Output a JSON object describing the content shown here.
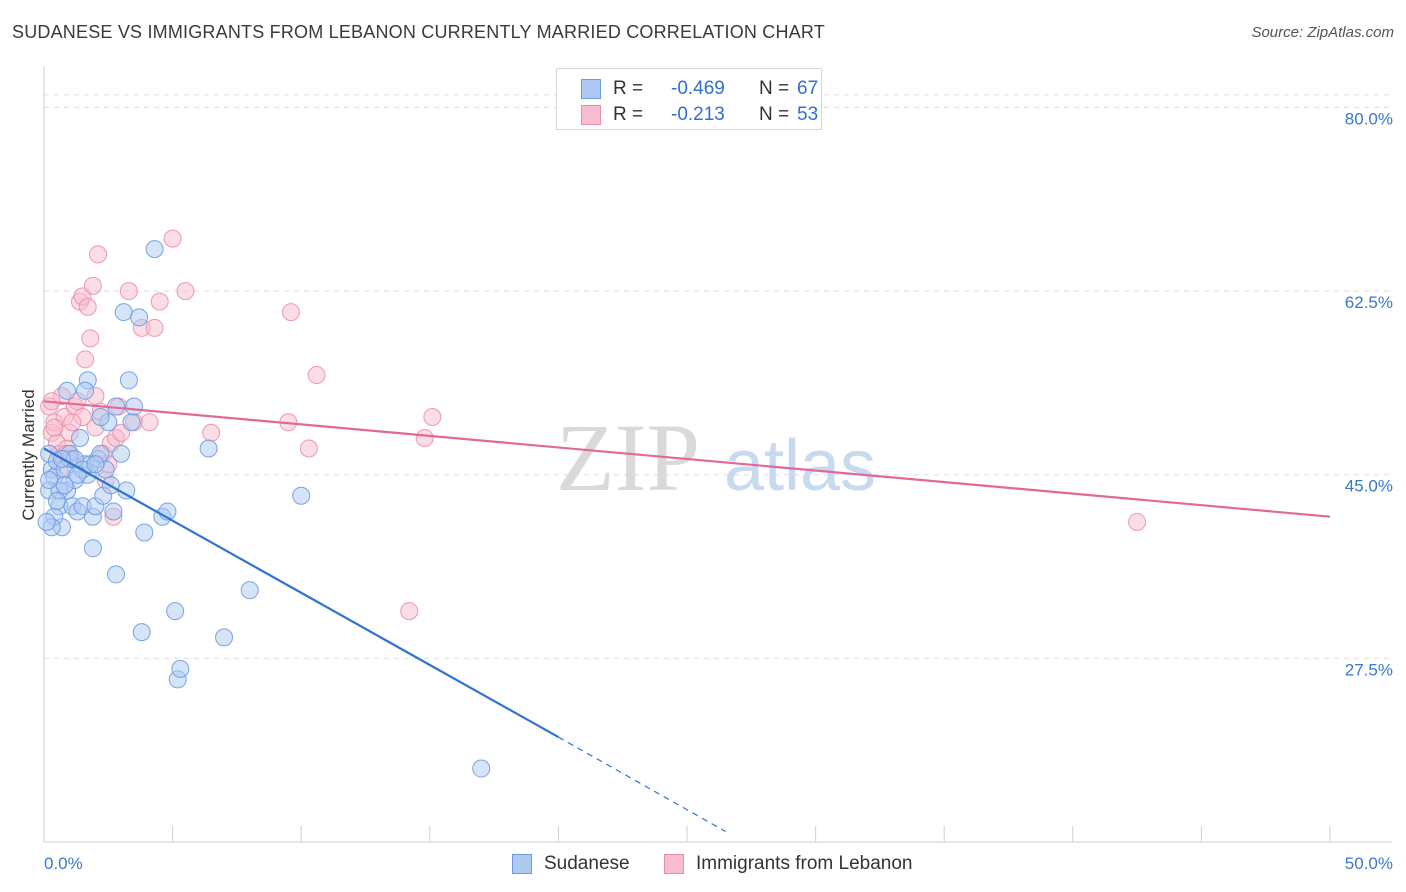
{
  "title": "SUDANESE VS IMMIGRANTS FROM LEBANON CURRENTLY MARRIED CORRELATION CHART",
  "source": "Source: ZipAtlas.com",
  "watermark": {
    "zip": "ZIP",
    "atlas": "atlas"
  },
  "legend_top": [
    {
      "r_label": "R =",
      "r_value": "-0.469",
      "n_label": "N =",
      "n_value": "67"
    },
    {
      "r_label": "R =",
      "r_value": "-0.213",
      "n_label": "N =",
      "n_value": "53"
    }
  ],
  "legend_bottom": [
    {
      "label": "Sudanese"
    },
    {
      "label": "Immigrants from Lebanon"
    }
  ],
  "colors": {
    "blue_fill": "#aec9f2",
    "blue_stroke": "#6c9be0",
    "blue_line": "#2f74d0",
    "pink_fill": "#f7bccd",
    "pink_stroke": "#ea8fab",
    "pink_line": "#e2689a",
    "tick_text": "#3a78cc",
    "grid": "#dddddd"
  },
  "chart_data": {
    "type": "scatter",
    "title": "SUDANESE VS IMMIGRANTS FROM LEBANON CURRENTLY MARRIED CORRELATION CHART",
    "xlabel": "",
    "ylabel": "Currently Married",
    "xlim": [
      0,
      50
    ],
    "ylim": [
      10,
      83
    ],
    "x_tick_labels": [
      "0.0%",
      "50.0%"
    ],
    "y_ticks": [
      27.5,
      45.0,
      62.5,
      80.0
    ],
    "y_tick_labels": [
      "27.5%",
      "45.0%",
      "62.5%",
      "80.0%"
    ],
    "series": [
      {
        "name": "Sudanese",
        "r": -0.469,
        "n": 67,
        "trend": {
          "x0": 0,
          "y0": 47.5,
          "x1": 20,
          "y1": 20.0,
          "dash_x1": 26.5,
          "dash_y1": 11.0
        },
        "points": [
          [
            0.2,
            47.0
          ],
          [
            0.3,
            45.5
          ],
          [
            0.4,
            44.8
          ],
          [
            0.2,
            43.5
          ],
          [
            0.5,
            46.3
          ],
          [
            0.6,
            42.0
          ],
          [
            0.7,
            40.0
          ],
          [
            0.4,
            41.0
          ],
          [
            0.8,
            45.5
          ],
          [
            0.9,
            43.5
          ],
          [
            1.0,
            46.5
          ],
          [
            1.1,
            42.0
          ],
          [
            1.2,
            44.5
          ],
          [
            1.3,
            41.5
          ],
          [
            1.4,
            48.5
          ],
          [
            1.5,
            42.0
          ],
          [
            1.6,
            46.0
          ],
          [
            1.7,
            45.0
          ],
          [
            1.8,
            46.0
          ],
          [
            1.9,
            41.0
          ],
          [
            2.0,
            42.0
          ],
          [
            2.1,
            46.5
          ],
          [
            2.2,
            47.0
          ],
          [
            2.3,
            43.0
          ],
          [
            2.4,
            45.5
          ],
          [
            2.5,
            50.0
          ],
          [
            2.6,
            44.0
          ],
          [
            2.7,
            41.5
          ],
          [
            2.8,
            51.5
          ],
          [
            3.0,
            47.0
          ],
          [
            3.2,
            43.5
          ],
          [
            3.4,
            50.0
          ],
          [
            0.9,
            53.0
          ],
          [
            1.7,
            54.0
          ],
          [
            1.9,
            38.0
          ],
          [
            2.8,
            35.5
          ],
          [
            3.1,
            60.5
          ],
          [
            3.3,
            54.0
          ],
          [
            3.5,
            51.5
          ],
          [
            3.7,
            60.0
          ],
          [
            3.8,
            30.0
          ],
          [
            3.9,
            39.5
          ],
          [
            4.3,
            66.5
          ],
          [
            4.6,
            41.0
          ],
          [
            4.8,
            41.5
          ],
          [
            5.1,
            32.0
          ],
          [
            5.2,
            25.5
          ],
          [
            5.3,
            26.5
          ],
          [
            6.4,
            47.5
          ],
          [
            7.0,
            29.5
          ],
          [
            8.0,
            34.0
          ],
          [
            10.0,
            43.0
          ],
          [
            17.0,
            17.0
          ],
          [
            0.3,
            40.0
          ],
          [
            0.6,
            43.5
          ],
          [
            1.0,
            47.0
          ],
          [
            1.2,
            46.5
          ],
          [
            1.5,
            45.5
          ],
          [
            0.8,
            44.0
          ],
          [
            2.0,
            46.0
          ],
          [
            0.5,
            42.5
          ],
          [
            1.3,
            45.0
          ],
          [
            0.1,
            40.5
          ],
          [
            0.2,
            44.5
          ],
          [
            2.2,
            50.5
          ],
          [
            1.6,
            53.0
          ],
          [
            0.7,
            46.5
          ]
        ]
      },
      {
        "name": "Immigrants from Lebanon",
        "r": -0.213,
        "n": 53,
        "trend": {
          "x0": 0,
          "y0": 52.0,
          "x1": 50,
          "y1": 41.0
        },
        "points": [
          [
            0.2,
            51.5
          ],
          [
            0.3,
            49.0
          ],
          [
            0.4,
            50.0
          ],
          [
            0.5,
            48.0
          ],
          [
            0.6,
            47.0
          ],
          [
            0.7,
            52.5
          ],
          [
            0.8,
            50.5
          ],
          [
            0.9,
            47.5
          ],
          [
            1.0,
            49.0
          ],
          [
            1.1,
            46.5
          ],
          [
            1.2,
            51.5
          ],
          [
            1.3,
            52.0
          ],
          [
            1.4,
            61.5
          ],
          [
            1.5,
            62.0
          ],
          [
            1.6,
            56.0
          ],
          [
            1.7,
            61.0
          ],
          [
            1.8,
            58.0
          ],
          [
            1.9,
            63.0
          ],
          [
            2.0,
            52.5
          ],
          [
            2.1,
            66.0
          ],
          [
            2.2,
            51.0
          ],
          [
            2.3,
            47.0
          ],
          [
            2.4,
            44.5
          ],
          [
            2.5,
            46.0
          ],
          [
            2.6,
            48.0
          ],
          [
            2.7,
            41.0
          ],
          [
            2.8,
            48.5
          ],
          [
            2.9,
            51.5
          ],
          [
            3.0,
            49.0
          ],
          [
            3.3,
            62.5
          ],
          [
            3.5,
            50.0
          ],
          [
            3.8,
            59.0
          ],
          [
            4.1,
            50.0
          ],
          [
            4.3,
            59.0
          ],
          [
            4.5,
            61.5
          ],
          [
            5.0,
            67.5
          ],
          [
            5.5,
            62.5
          ],
          [
            6.5,
            49.0
          ],
          [
            9.5,
            50.0
          ],
          [
            9.6,
            60.5
          ],
          [
            10.3,
            47.5
          ],
          [
            10.6,
            54.5
          ],
          [
            14.2,
            32.0
          ],
          [
            14.8,
            48.5
          ],
          [
            15.1,
            50.5
          ],
          [
            42.5,
            40.5
          ],
          [
            0.4,
            49.5
          ],
          [
            0.9,
            47.0
          ],
          [
            1.5,
            50.5
          ],
          [
            2.0,
            49.5
          ],
          [
            0.6,
            45.5
          ],
          [
            1.1,
            50.0
          ],
          [
            0.3,
            52.0
          ]
        ]
      }
    ]
  }
}
